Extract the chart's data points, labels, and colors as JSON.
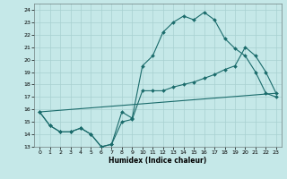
{
  "xlabel": "Humidex (Indice chaleur)",
  "background_color": "#c5e8e8",
  "grid_color": "#a8d0d0",
  "line_color": "#1a6b6b",
  "xlim": [
    -0.5,
    23.5
  ],
  "ylim": [
    13,
    24.5
  ],
  "yticks": [
    13,
    14,
    15,
    16,
    17,
    18,
    19,
    20,
    21,
    22,
    23,
    24
  ],
  "xticks": [
    0,
    1,
    2,
    3,
    4,
    5,
    6,
    7,
    8,
    9,
    10,
    11,
    12,
    13,
    14,
    15,
    16,
    17,
    18,
    19,
    20,
    21,
    22,
    23
  ],
  "line1_x": [
    0,
    1,
    2,
    3,
    4,
    5,
    6,
    7,
    8,
    9,
    10,
    11,
    12,
    13,
    14,
    15,
    16,
    17,
    18,
    19,
    20,
    21,
    22,
    23
  ],
  "line1_y": [
    15.8,
    14.7,
    14.2,
    14.2,
    14.5,
    14.0,
    13.0,
    13.2,
    15.8,
    15.3,
    19.5,
    20.3,
    22.2,
    23.0,
    23.5,
    23.2,
    23.8,
    23.2,
    21.7,
    20.9,
    20.3,
    19.0,
    17.3,
    17.0
  ],
  "line2_x": [
    0,
    1,
    2,
    3,
    4,
    5,
    6,
    7,
    8,
    9,
    10,
    11,
    12,
    13,
    14,
    15,
    16,
    17,
    18,
    19,
    20,
    21,
    22,
    23
  ],
  "line2_y": [
    15.8,
    14.7,
    14.2,
    14.2,
    14.5,
    14.0,
    13.0,
    13.2,
    15.0,
    15.2,
    17.5,
    17.5,
    17.5,
    17.8,
    18.0,
    18.2,
    18.5,
    18.8,
    19.2,
    19.5,
    21.0,
    20.3,
    19.0,
    17.3
  ],
  "line3_x": [
    0,
    23
  ],
  "line3_y": [
    15.8,
    17.3
  ]
}
